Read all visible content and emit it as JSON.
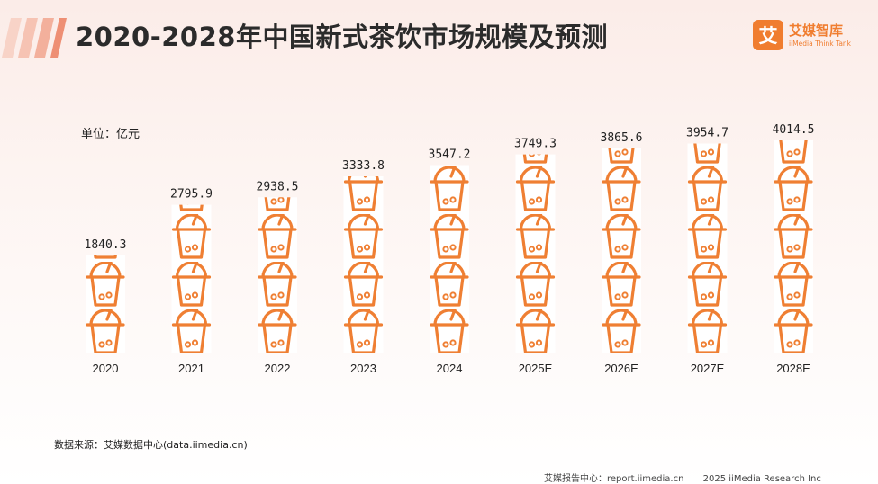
{
  "header": {
    "title": "2020-2028年中国新式茶饮市场规模及预测",
    "logo_cn": "艾媒智库",
    "logo_en": "iiMedia Think Tank",
    "logo_glyph": "艾"
  },
  "chart_data": {
    "type": "bar",
    "unit_label": "单位：亿元",
    "categories": [
      "2020",
      "2021",
      "2022",
      "2023",
      "2024",
      "2025E",
      "2026E",
      "2027E",
      "2028E"
    ],
    "values": [
      1840.3,
      2795.9,
      2938.5,
      3333.8,
      3547.2,
      3749.3,
      3865.6,
      3954.7,
      4014.5
    ],
    "value_labels": [
      "1840.3",
      "2795.9",
      "2938.5",
      "3333.8",
      "3547.2",
      "3749.3",
      "3865.6",
      "3954.7",
      "4014.5"
    ],
    "mark": "tea-cup-icon",
    "ylim": [
      0,
      4014.5
    ],
    "grid": false,
    "legend": "none"
  },
  "footer": {
    "source": "数据来源：艾媒数据中心(data.iimedia.cn)",
    "report_center": "艾媒报告中心：report.iimedia.cn",
    "copyright": "2025 iiMedia Research Inc"
  },
  "colors": {
    "accent": "#f07d2f",
    "cup_stroke": "#ef7f33",
    "deco_bars": "#f6c7b8"
  }
}
